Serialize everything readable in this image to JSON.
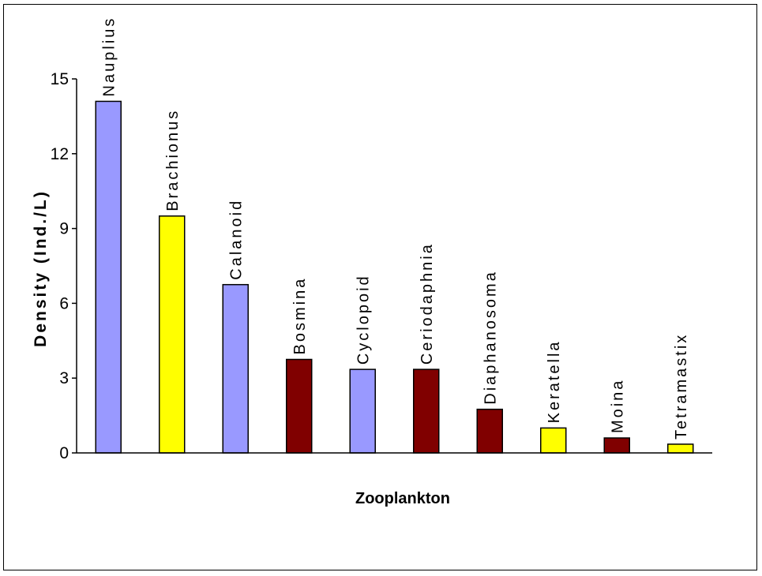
{
  "chart_data": {
    "type": "bar",
    "categories": [
      "Nauplius",
      "Brachionus",
      "Calanoid",
      "Bosmina",
      "Cyclopoid",
      "Ceriodaphnia",
      "Diaphanosoma",
      "Keratella",
      "Moina",
      "Tetramastix"
    ],
    "values": [
      14.1,
      9.5,
      6.75,
      3.75,
      3.35,
      3.35,
      1.75,
      1.0,
      0.6,
      0.35
    ],
    "bar_colors": [
      "#9999ff",
      "#ffff00",
      "#9999ff",
      "#800000",
      "#9999ff",
      "#800000",
      "#800000",
      "#ffff00",
      "#800000",
      "#ffff00"
    ],
    "xlabel": "Zooplankton",
    "ylabel": "Density (Ind./L)",
    "ylim": [
      0,
      15
    ],
    "yticks": [
      0,
      3,
      6,
      9,
      12,
      15
    ],
    "grid": false,
    "legend": "none"
  }
}
